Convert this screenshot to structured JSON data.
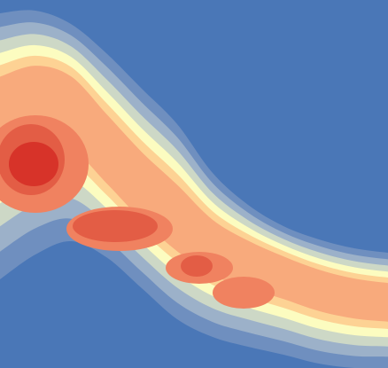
{
  "chart_data": {
    "type": "contour",
    "background": "#4a77b7",
    "colors": [
      "#6f8fbf",
      "#9cb1c9",
      "#cdd8c6",
      "#fcfcc0",
      "#fdd294",
      "#f8aa7c",
      "#f08260",
      "#e35d45",
      "#d73329"
    ]
  }
}
